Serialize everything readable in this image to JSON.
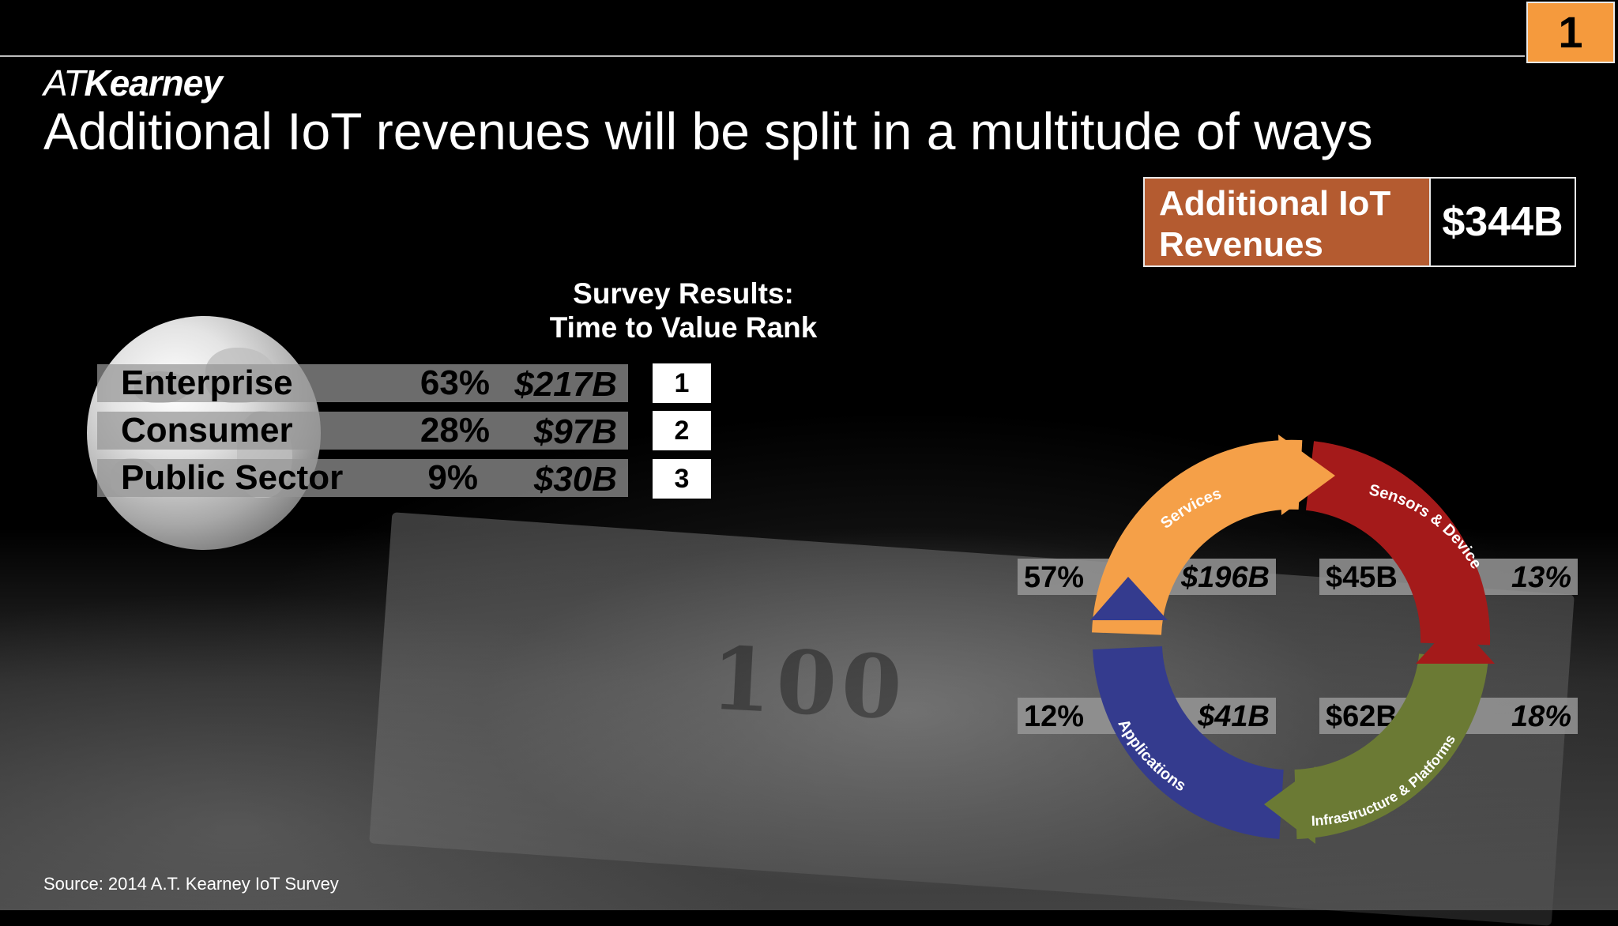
{
  "header": {
    "page_number": "1",
    "logo_at": "AT",
    "logo_name": "Kearney",
    "title": "Additional IoT revenues will be split in a multitude of ways"
  },
  "total_box": {
    "label_line1": "Additional IoT",
    "label_line2": "Revenues",
    "value": "$344B"
  },
  "survey": {
    "title_line1": "Survey Results:",
    "title_line2": "Time to Value Rank",
    "rows": [
      {
        "name": "Enterprise",
        "pct": "63%",
        "value": "$217B",
        "rank": "1"
      },
      {
        "name": "Consumer",
        "pct": "28%",
        "value": "$97B",
        "rank": "2"
      },
      {
        "name": "Public Sector",
        "pct": "9%",
        "value": "$30B",
        "rank": "3"
      }
    ]
  },
  "cycle": {
    "segments": [
      {
        "label": "Services",
        "color": "#f5a048"
      },
      {
        "label": "Sensors & Devices",
        "color": "#a41a1a"
      },
      {
        "label": "Infrastructure & Platforms",
        "color": "#6b7a34"
      },
      {
        "label": "Applications",
        "color": "#343b8e"
      }
    ],
    "stats": {
      "services_pct": "57%",
      "services_value": "$196B",
      "sensors_value": "$45B",
      "sensors_pct": "13%",
      "applications_pct": "12%",
      "applications_value": "$41B",
      "infrastructure_value": "$62B",
      "infrastructure_pct": "18%"
    }
  },
  "footer": {
    "source": "Source: 2014 A.T. Kearney IoT Survey"
  },
  "colors": {
    "accent_orange": "#f59a3d",
    "revenue_box": "#b45b30",
    "background": "#000000"
  }
}
